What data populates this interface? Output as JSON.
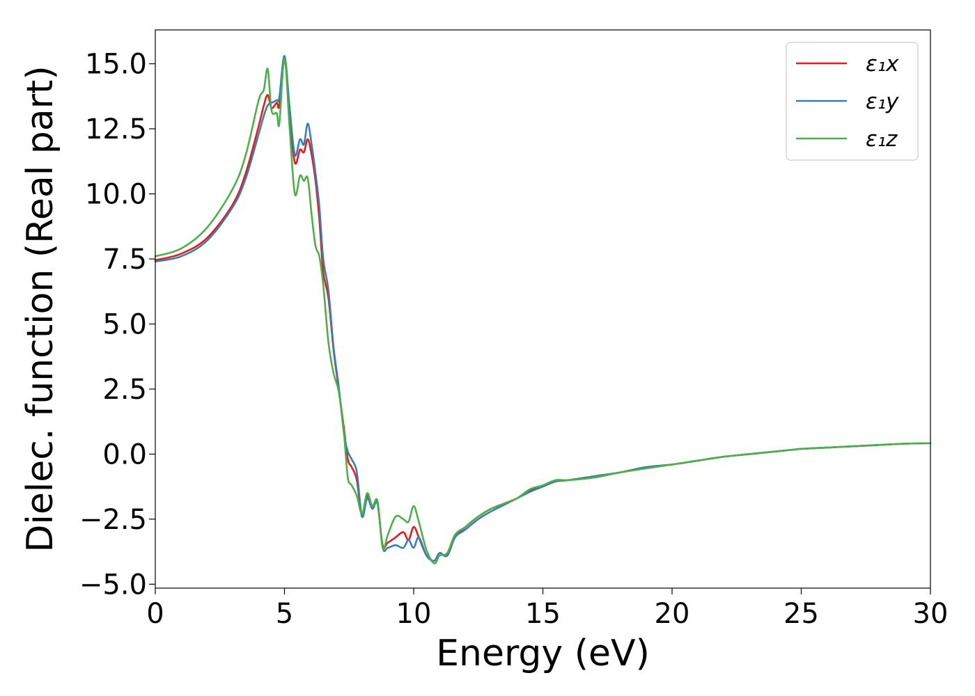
{
  "chart_data": {
    "type": "line",
    "title": "",
    "xlabel": "Energy (eV)",
    "ylabel": "Dielec. function (Real part)",
    "xlim": [
      0,
      30
    ],
    "ylim": [
      -5.15,
      16.3
    ],
    "xticks": [
      0,
      5,
      10,
      15,
      20,
      25,
      30
    ],
    "xtick_labels": [
      "0",
      "5",
      "10",
      "15",
      "20",
      "25",
      "30"
    ],
    "yticks": [
      -5.0,
      -2.5,
      0.0,
      2.5,
      5.0,
      7.5,
      10.0,
      12.5,
      15.0
    ],
    "ytick_labels": [
      "−5.0",
      "−2.5",
      "0.0",
      "2.5",
      "5.0",
      "7.5",
      "10.0",
      "12.5",
      "15.0"
    ],
    "grid": false,
    "legend_position": "top-right",
    "series": [
      {
        "name": "ε₁x",
        "color": "#e41a1c",
        "x": [
          0,
          1,
          2,
          3,
          3.5,
          4.0,
          4.2,
          4.35,
          4.5,
          4.7,
          4.8,
          5.0,
          5.2,
          5.4,
          5.6,
          5.75,
          5.9,
          6.05,
          6.2,
          6.35,
          6.5,
          6.7,
          6.9,
          7.1,
          7.3,
          7.45,
          7.6,
          7.8,
          8.0,
          8.2,
          8.4,
          8.6,
          8.8,
          9.0,
          9.3,
          9.6,
          9.8,
          10.0,
          10.2,
          10.5,
          10.8,
          11.0,
          11.3,
          11.6,
          12.0,
          12.5,
          13.0,
          13.5,
          14.0,
          14.5,
          15.0,
          15.5,
          16,
          17,
          18,
          19,
          20,
          21,
          22,
          23,
          24,
          25,
          26,
          27,
          28,
          29,
          30
        ],
        "y": [
          7.45,
          7.7,
          8.3,
          9.6,
          10.8,
          12.6,
          13.4,
          13.8,
          13.3,
          13.5,
          13.4,
          15.2,
          13.0,
          11.2,
          11.7,
          11.6,
          12.1,
          11.5,
          10.5,
          9.0,
          7.0,
          6.0,
          4.0,
          2.5,
          1.0,
          -0.2,
          -0.5,
          -1.0,
          -2.4,
          -1.6,
          -2.0,
          -1.9,
          -3.5,
          -3.4,
          -3.2,
          -3.0,
          -3.3,
          -2.8,
          -3.2,
          -3.9,
          -4.1,
          -3.8,
          -3.9,
          -3.2,
          -2.8,
          -2.4,
          -2.1,
          -1.9,
          -1.7,
          -1.4,
          -1.2,
          -1.05,
          -1.0,
          -0.85,
          -0.7,
          -0.5,
          -0.4,
          -0.25,
          -0.1,
          0.0,
          0.1,
          0.2,
          0.25,
          0.3,
          0.35,
          0.4,
          0.42
        ]
      },
      {
        "name": "ε₁y",
        "color": "#377eb8",
        "x": [
          0,
          1,
          2,
          3,
          3.5,
          4.0,
          4.2,
          4.35,
          4.5,
          4.7,
          4.8,
          5.0,
          5.2,
          5.4,
          5.6,
          5.75,
          5.9,
          6.05,
          6.2,
          6.35,
          6.5,
          6.7,
          6.9,
          7.1,
          7.3,
          7.45,
          7.6,
          7.8,
          8.0,
          8.2,
          8.4,
          8.6,
          8.8,
          9.0,
          9.3,
          9.6,
          9.8,
          10.0,
          10.2,
          10.5,
          10.8,
          11.0,
          11.3,
          11.6,
          12.0,
          12.5,
          13.0,
          13.5,
          14.0,
          14.5,
          15.0,
          15.5,
          16,
          17,
          18,
          19,
          20,
          21,
          22,
          23,
          24,
          25,
          26,
          27,
          28,
          29,
          30
        ],
        "y": [
          7.4,
          7.6,
          8.2,
          9.5,
          10.6,
          12.3,
          13.0,
          13.4,
          13.5,
          13.6,
          13.7,
          15.3,
          13.3,
          11.5,
          12.1,
          11.9,
          12.7,
          11.9,
          10.8,
          9.5,
          7.5,
          6.3,
          4.1,
          2.6,
          0.8,
          0.1,
          -0.2,
          -0.7,
          -2.4,
          -1.7,
          -2.1,
          -1.9,
          -3.6,
          -3.6,
          -3.5,
          -3.6,
          -3.3,
          -3.6,
          -3.2,
          -3.9,
          -4.1,
          -3.8,
          -3.9,
          -3.2,
          -2.9,
          -2.5,
          -2.2,
          -1.95,
          -1.7,
          -1.45,
          -1.25,
          -1.05,
          -1.0,
          -0.85,
          -0.7,
          -0.5,
          -0.4,
          -0.25,
          -0.1,
          0.0,
          0.1,
          0.2,
          0.25,
          0.3,
          0.35,
          0.4,
          0.42
        ]
      },
      {
        "name": "ε₁z",
        "color": "#4daf4a",
        "x": [
          0,
          1,
          2,
          3,
          3.5,
          4.0,
          4.2,
          4.35,
          4.5,
          4.7,
          4.8,
          5.0,
          5.2,
          5.4,
          5.6,
          5.75,
          5.9,
          6.05,
          6.2,
          6.35,
          6.5,
          6.7,
          6.9,
          7.1,
          7.3,
          7.45,
          7.6,
          7.8,
          8.0,
          8.2,
          8.4,
          8.6,
          8.8,
          9.0,
          9.3,
          9.6,
          9.8,
          10.0,
          10.2,
          10.5,
          10.8,
          11.0,
          11.3,
          11.6,
          12.0,
          12.5,
          13.0,
          13.5,
          14.0,
          14.5,
          15.0,
          15.5,
          16,
          17,
          18,
          19,
          20,
          21,
          22,
          23,
          24,
          25,
          26,
          27,
          28,
          29,
          30
        ],
        "y": [
          7.6,
          7.9,
          8.7,
          10.2,
          11.5,
          13.6,
          14.0,
          14.8,
          13.2,
          13.1,
          12.7,
          15.2,
          12.5,
          10.0,
          10.7,
          10.5,
          10.6,
          9.2,
          8.0,
          7.6,
          6.5,
          4.3,
          3.1,
          2.4,
          0.8,
          -0.9,
          -1.2,
          -1.6,
          -2.3,
          -1.5,
          -2.0,
          -1.8,
          -3.6,
          -3.1,
          -2.4,
          -2.5,
          -2.6,
          -2.0,
          -2.6,
          -3.7,
          -4.2,
          -3.9,
          -3.8,
          -3.1,
          -2.8,
          -2.4,
          -2.1,
          -1.9,
          -1.7,
          -1.35,
          -1.2,
          -1.0,
          -1.0,
          -0.9,
          -0.7,
          -0.55,
          -0.4,
          -0.25,
          -0.1,
          0.0,
          0.1,
          0.2,
          0.25,
          0.3,
          0.35,
          0.4,
          0.42
        ]
      }
    ]
  }
}
